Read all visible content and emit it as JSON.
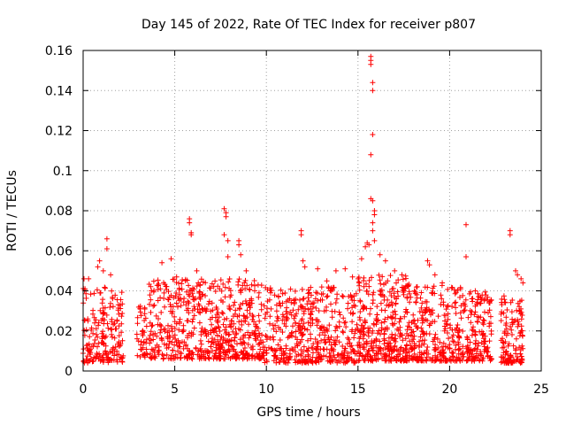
{
  "chart_data": {
    "type": "scatter",
    "title": "Day 145 of 2022, Rate Of TEC Index for receiver p807",
    "xlabel": "GPS time / hours",
    "ylabel": "ROTI / TECUs",
    "xlim": [
      0,
      25
    ],
    "ylim": [
      0,
      0.16
    ],
    "x_ticks": [
      0,
      5,
      10,
      15,
      20,
      25
    ],
    "x_tick_labels": [
      "0",
      "5",
      "10",
      "15",
      "20",
      "25"
    ],
    "y_ticks": [
      0,
      0.02,
      0.04,
      0.06,
      0.08,
      0.1,
      0.12,
      0.14,
      0.16
    ],
    "y_tick_labels": [
      "0",
      "0.02",
      "0.04",
      "0.06",
      "0.08",
      "0.1",
      "0.12",
      "0.14",
      "0.16"
    ],
    "grid": true,
    "marker": "+",
    "color": "#ff0000",
    "outliers": [
      {
        "x": 0.05,
        "y": 0.046
      },
      {
        "x": 0.1,
        "y": 0.041
      },
      {
        "x": 0.3,
        "y": 0.046
      },
      {
        "x": 0.8,
        "y": 0.052
      },
      {
        "x": 0.9,
        "y": 0.055
      },
      {
        "x": 1.1,
        "y": 0.05
      },
      {
        "x": 1.3,
        "y": 0.066
      },
      {
        "x": 1.3,
        "y": 0.061
      },
      {
        "x": 1.5,
        "y": 0.048
      },
      {
        "x": 4.3,
        "y": 0.054
      },
      {
        "x": 4.8,
        "y": 0.056
      },
      {
        "x": 5.1,
        "y": 0.047
      },
      {
        "x": 5.8,
        "y": 0.076
      },
      {
        "x": 5.8,
        "y": 0.074
      },
      {
        "x": 5.9,
        "y": 0.069
      },
      {
        "x": 5.9,
        "y": 0.068
      },
      {
        "x": 6.2,
        "y": 0.05
      },
      {
        "x": 7.7,
        "y": 0.081
      },
      {
        "x": 7.8,
        "y": 0.079
      },
      {
        "x": 7.8,
        "y": 0.077
      },
      {
        "x": 7.7,
        "y": 0.068
      },
      {
        "x": 7.9,
        "y": 0.065
      },
      {
        "x": 7.9,
        "y": 0.057
      },
      {
        "x": 8.5,
        "y": 0.065
      },
      {
        "x": 8.5,
        "y": 0.063
      },
      {
        "x": 8.6,
        "y": 0.058
      },
      {
        "x": 8.9,
        "y": 0.05
      },
      {
        "x": 9.6,
        "y": 0.039
      },
      {
        "x": 11.9,
        "y": 0.07
      },
      {
        "x": 11.9,
        "y": 0.068
      },
      {
        "x": 12.0,
        "y": 0.055
      },
      {
        "x": 12.1,
        "y": 0.052
      },
      {
        "x": 12.8,
        "y": 0.051
      },
      {
        "x": 13.3,
        "y": 0.045
      },
      {
        "x": 13.8,
        "y": 0.05
      },
      {
        "x": 14.3,
        "y": 0.051
      },
      {
        "x": 14.7,
        "y": 0.047
      },
      {
        "x": 15.2,
        "y": 0.056
      },
      {
        "x": 15.4,
        "y": 0.062
      },
      {
        "x": 15.5,
        "y": 0.064
      },
      {
        "x": 15.6,
        "y": 0.063
      },
      {
        "x": 15.7,
        "y": 0.157
      },
      {
        "x": 15.7,
        "y": 0.155
      },
      {
        "x": 15.7,
        "y": 0.153
      },
      {
        "x": 15.8,
        "y": 0.144
      },
      {
        "x": 15.8,
        "y": 0.14
      },
      {
        "x": 15.8,
        "y": 0.118
      },
      {
        "x": 15.7,
        "y": 0.108
      },
      {
        "x": 15.7,
        "y": 0.086
      },
      {
        "x": 15.8,
        "y": 0.085
      },
      {
        "x": 15.9,
        "y": 0.08
      },
      {
        "x": 15.9,
        "y": 0.078
      },
      {
        "x": 15.8,
        "y": 0.074
      },
      {
        "x": 15.8,
        "y": 0.07
      },
      {
        "x": 15.9,
        "y": 0.065
      },
      {
        "x": 16.2,
        "y": 0.058
      },
      {
        "x": 16.5,
        "y": 0.055
      },
      {
        "x": 17.0,
        "y": 0.05
      },
      {
        "x": 17.4,
        "y": 0.048
      },
      {
        "x": 18.8,
        "y": 0.055
      },
      {
        "x": 18.9,
        "y": 0.053
      },
      {
        "x": 19.2,
        "y": 0.048
      },
      {
        "x": 19.6,
        "y": 0.044
      },
      {
        "x": 20.6,
        "y": 0.041
      },
      {
        "x": 20.9,
        "y": 0.073
      },
      {
        "x": 20.9,
        "y": 0.057
      },
      {
        "x": 21.4,
        "y": 0.04
      },
      {
        "x": 21.9,
        "y": 0.036
      },
      {
        "x": 23.3,
        "y": 0.07
      },
      {
        "x": 23.3,
        "y": 0.068
      },
      {
        "x": 23.6,
        "y": 0.05
      },
      {
        "x": 23.7,
        "y": 0.048
      },
      {
        "x": 23.9,
        "y": 0.046
      },
      {
        "x": 24.0,
        "y": 0.044
      }
    ],
    "segments": [
      {
        "x_start": 0.0,
        "x_end": 2.2,
        "y_low": 0.004,
        "y_high": 0.042,
        "density": 190
      },
      {
        "x_start": 2.9,
        "x_end": 3.5,
        "y_low": 0.007,
        "y_high": 0.034,
        "density": 40
      },
      {
        "x_start": 3.6,
        "x_end": 7.2,
        "y_low": 0.006,
        "y_high": 0.046,
        "density": 330
      },
      {
        "x_start": 7.2,
        "x_end": 9.8,
        "y_low": 0.006,
        "y_high": 0.046,
        "density": 280
      },
      {
        "x_start": 9.8,
        "x_end": 15.0,
        "y_low": 0.004,
        "y_high": 0.042,
        "density": 460
      },
      {
        "x_start": 15.0,
        "x_end": 17.8,
        "y_low": 0.005,
        "y_high": 0.048,
        "density": 340
      },
      {
        "x_start": 17.8,
        "x_end": 20.6,
        "y_low": 0.005,
        "y_high": 0.043,
        "density": 270
      },
      {
        "x_start": 20.6,
        "x_end": 22.3,
        "y_low": 0.005,
        "y_high": 0.04,
        "density": 160
      },
      {
        "x_start": 22.8,
        "x_end": 24.0,
        "y_low": 0.004,
        "y_high": 0.038,
        "density": 130
      }
    ]
  }
}
